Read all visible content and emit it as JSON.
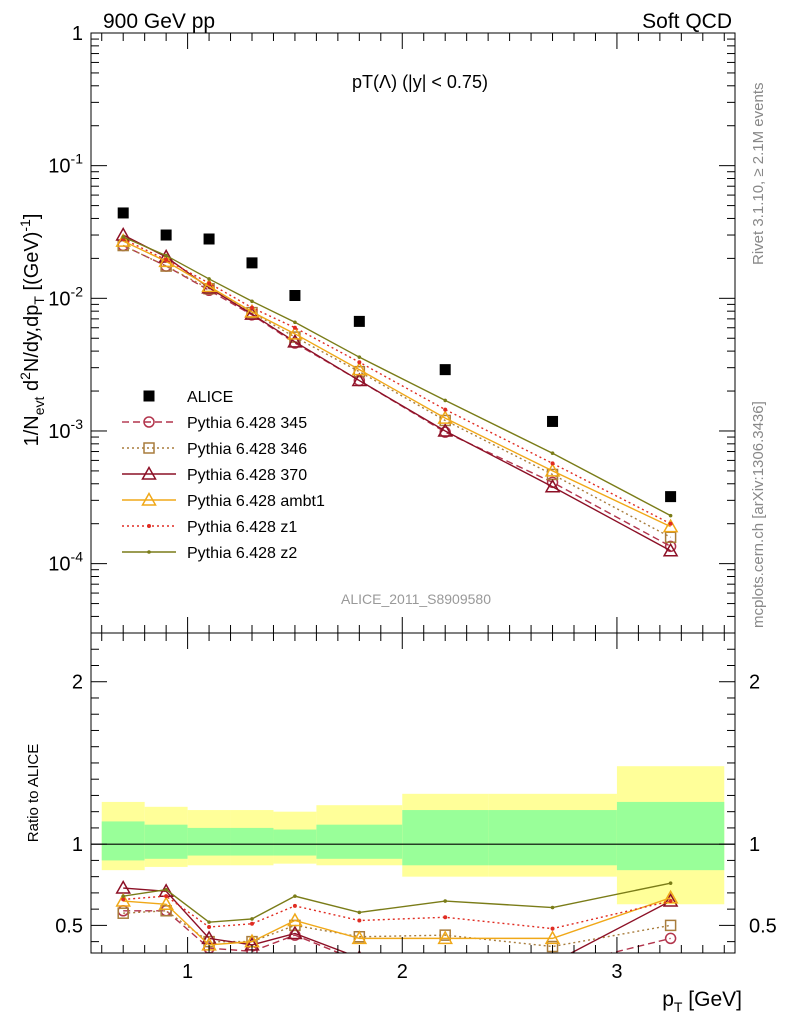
{
  "header": {
    "left": "900 GeV pp",
    "right": "Soft QCD"
  },
  "side_labels": {
    "rivet": "Rivet 3.1.10, ≥ 2.1M events",
    "mcplots": "mcplots.cern.ch [arXiv:1306.3436]"
  },
  "chart_data": [
    {
      "type": "line",
      "title": "pT(Λ) (|y| < 0.75)",
      "watermark": "ALICE_2011_S8909580",
      "ylabel": "1/N_evt d²N/dy,dp_T [(GeV)⁻¹]",
      "yscale": "log",
      "ylim": [
        3e-05,
        1
      ],
      "xlim": [
        0.55,
        3.55
      ],
      "grid": false,
      "legend_position": "bottom-left",
      "y_tick_labels": [
        "1",
        "10^-1",
        "10^-2",
        "10^-3",
        "10^-4"
      ],
      "x": [
        0.7,
        0.9,
        1.1,
        1.3,
        1.5,
        1.8,
        2.2,
        2.7,
        3.25
      ],
      "series": [
        {
          "name": "ALICE",
          "color": "#000000",
          "marker": "square",
          "line": "none",
          "values": [
            0.044,
            0.03,
            0.028,
            0.0185,
            0.0105,
            0.0067,
            0.0029,
            0.00118,
            0.00032
          ]
        },
        {
          "name": "Pythia 6.428 345",
          "color": "#b2344c",
          "marker": "circle-open",
          "line": "dashed",
          "values": [
            0.025,
            0.0175,
            0.0115,
            0.0075,
            0.0046,
            0.0024,
            0.00098,
            0.00041,
            0.000135
          ]
        },
        {
          "name": "Pythia 6.428 346",
          "color": "#a87c3c",
          "marker": "square-open",
          "line": "dotted",
          "values": [
            0.025,
            0.0175,
            0.0118,
            0.0078,
            0.0051,
            0.0028,
            0.0012,
            0.00047,
            0.000158
          ]
        },
        {
          "name": "Pythia 6.428 370",
          "color": "#8c1026",
          "marker": "triangle-open",
          "line": "solid",
          "values": [
            0.03,
            0.0205,
            0.012,
            0.0076,
            0.0047,
            0.0024,
            0.001,
            0.00038,
            0.000125
          ]
        },
        {
          "name": "Pythia 6.428 ambt1",
          "color": "#f0a818",
          "marker": "triangle-open",
          "line": "solid",
          "values": [
            0.027,
            0.019,
            0.0123,
            0.0079,
            0.0054,
            0.0029,
            0.00125,
            0.0005,
            0.00019
          ]
        },
        {
          "name": "Pythia 6.428 z1",
          "color": "#e02c22",
          "marker": "star",
          "line": "dotted",
          "values": [
            0.028,
            0.0195,
            0.013,
            0.0085,
            0.006,
            0.0033,
            0.00145,
            0.00057,
            0.0002
          ]
        },
        {
          "name": "Pythia 6.428 z2",
          "color": "#7a7c18",
          "marker": "dot",
          "line": "solid",
          "values": [
            0.029,
            0.021,
            0.014,
            0.0095,
            0.0066,
            0.0036,
            0.0017,
            0.00068,
            0.00023
          ]
        }
      ]
    },
    {
      "type": "line",
      "ylabel": "Ratio to ALICE",
      "xlabel": "p_T [GeV]",
      "ylim": [
        0.33,
        2.3
      ],
      "xlim": [
        0.55,
        3.55
      ],
      "x_tick_labels": [
        "1",
        "2",
        "3"
      ],
      "y_tick_labels": [
        "0.5",
        "1",
        "2"
      ],
      "reference_line": 1,
      "bands": {
        "edges": [
          0.6,
          0.8,
          1.0,
          1.2,
          1.4,
          1.6,
          2.0,
          2.4,
          3.0,
          3.5
        ],
        "outer_color": "#ffff99",
        "inner_color": "#99ff99",
        "outer": [
          [
            0.84,
            1.26
          ],
          [
            0.86,
            1.23
          ],
          [
            0.87,
            1.21
          ],
          [
            0.87,
            1.21
          ],
          [
            0.88,
            1.2
          ],
          [
            0.87,
            1.24
          ],
          [
            0.8,
            1.31
          ],
          [
            0.8,
            1.31
          ],
          [
            0.63,
            1.48
          ]
        ],
        "inner": [
          [
            0.9,
            1.14
          ],
          [
            0.91,
            1.12
          ],
          [
            0.93,
            1.1
          ],
          [
            0.93,
            1.1
          ],
          [
            0.93,
            1.09
          ],
          [
            0.91,
            1.12
          ],
          [
            0.87,
            1.21
          ],
          [
            0.87,
            1.21
          ],
          [
            0.84,
            1.26
          ]
        ]
      },
      "x": [
        0.7,
        0.9,
        1.1,
        1.3,
        1.5,
        1.8,
        2.2,
        2.7,
        3.25
      ],
      "series": [
        {
          "name": "Pythia 6.428 345",
          "values": [
            0.59,
            0.59,
            0.36,
            0.34,
            0.44,
            0.28,
            0.27,
            0.24,
            0.42
          ]
        },
        {
          "name": "Pythia 6.428 346",
          "values": [
            0.575,
            0.59,
            0.4,
            0.4,
            0.5,
            0.43,
            0.44,
            0.37,
            0.5
          ]
        },
        {
          "name": "Pythia 6.428 370",
          "values": [
            0.73,
            0.71,
            0.42,
            0.38,
            0.45,
            0.3,
            0.29,
            0.27,
            0.65
          ]
        },
        {
          "name": "Pythia 6.428 ambt1",
          "values": [
            0.65,
            0.63,
            0.38,
            0.4,
            0.53,
            0.42,
            0.42,
            0.42,
            0.67
          ]
        },
        {
          "name": "Pythia 6.428 z1",
          "values": [
            0.66,
            0.68,
            0.49,
            0.51,
            0.62,
            0.53,
            0.55,
            0.48,
            0.65
          ]
        },
        {
          "name": "Pythia 6.428 z2",
          "values": [
            0.68,
            0.72,
            0.52,
            0.54,
            0.68,
            0.58,
            0.65,
            0.61,
            0.76
          ]
        }
      ]
    }
  ]
}
